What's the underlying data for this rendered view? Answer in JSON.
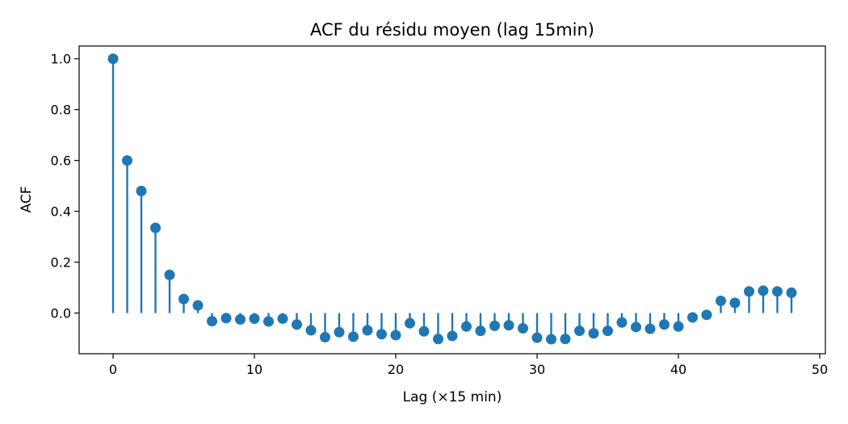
{
  "chart_data": {
    "type": "stem",
    "title": "ACF du résidu moyen (lag 15min)",
    "xlabel": "Lag (×15 min)",
    "ylabel": "ACF",
    "xlim": [
      -2.4,
      50.4
    ],
    "ylim": [
      -0.16,
      1.05
    ],
    "x_ticks": [
      0,
      10,
      20,
      30,
      40,
      50
    ],
    "x_tick_labels": [
      "0",
      "10",
      "20",
      "30",
      "40",
      "50"
    ],
    "y_ticks": [
      0.0,
      0.2,
      0.4,
      0.6,
      0.8,
      1.0
    ],
    "y_tick_labels": [
      "0.0",
      "0.2",
      "0.4",
      "0.6",
      "0.8",
      "1.0"
    ],
    "grid": false,
    "color": "#1f77b4",
    "x": [
      0,
      1,
      2,
      3,
      4,
      5,
      6,
      7,
      8,
      9,
      10,
      11,
      12,
      13,
      14,
      15,
      16,
      17,
      18,
      19,
      20,
      21,
      22,
      23,
      24,
      25,
      26,
      27,
      28,
      29,
      30,
      31,
      32,
      33,
      34,
      35,
      36,
      37,
      38,
      39,
      40,
      41,
      42,
      43,
      44,
      45,
      46,
      47,
      48
    ],
    "values": [
      1.0,
      0.6,
      0.48,
      0.335,
      0.15,
      0.055,
      0.03,
      -0.032,
      -0.02,
      -0.025,
      -0.022,
      -0.033,
      -0.022,
      -0.045,
      -0.068,
      -0.095,
      -0.075,
      -0.093,
      -0.068,
      -0.083,
      -0.087,
      -0.04,
      -0.072,
      -0.102,
      -0.09,
      -0.053,
      -0.07,
      -0.05,
      -0.048,
      -0.06,
      -0.097,
      -0.103,
      -0.102,
      -0.07,
      -0.08,
      -0.07,
      -0.037,
      -0.055,
      -0.062,
      -0.045,
      -0.053,
      -0.017,
      -0.007,
      0.048,
      0.04,
      0.085,
      0.088,
      0.085,
      0.08
    ]
  }
}
